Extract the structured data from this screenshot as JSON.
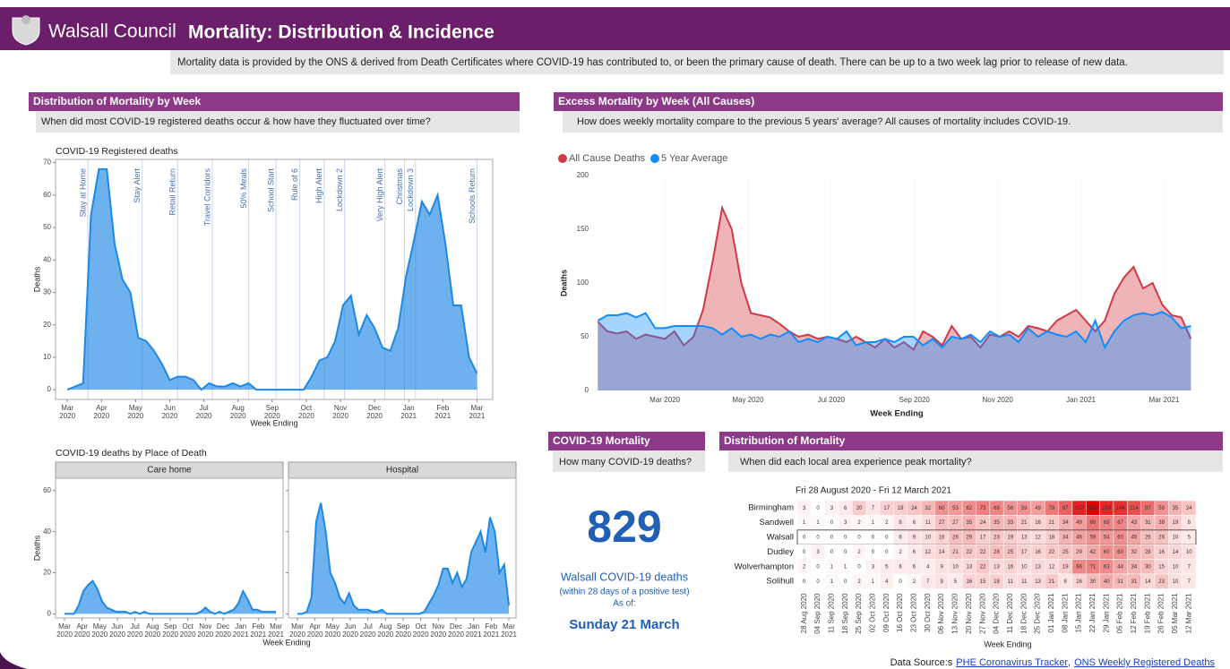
{
  "header": {
    "org": "Walsall Council",
    "title": "Mortality: Distribution & Incidence",
    "description": "Mortality data is provided by the ONS & derived from Death Certificates where COVID-19 has contributed to, or been the primary cause of death. There can be up to a two week lag prior to release of new data."
  },
  "panels": {
    "week": {
      "title": "Distribution of Mortality by Week",
      "question": "When did most COVID-19 registered deaths occur & how have they fluctuated over time?"
    },
    "excess": {
      "title": "Excess Mortality by Week (All Causes)",
      "question": "How does weekly mortality compare to the previous 5 years' average? All causes of mortality includes COVID-19."
    },
    "kpi": {
      "title": "COVID-19 Mortality",
      "question": "How many COVID-19 deaths?",
      "value": "829",
      "label": "Walsall COVID-19 deaths",
      "note": "(within 28 days of a positive test)",
      "asof_label": "As of:",
      "asof": "Sunday 21 March"
    },
    "distribution": {
      "title": "Distribution of Mortality",
      "question": "When did each local area experience peak mortality?"
    }
  },
  "place_of_death_title": "COVID-19 deaths by Place of Death",
  "footer": {
    "source_label": "Data Source:s",
    "separator": ",",
    "links": [
      "PHE Coronavirus Tracker",
      "ONS Weekly Registered Deaths"
    ]
  },
  "chart_data": [
    {
      "type": "area",
      "title": "COVID-19 Registered deaths",
      "y_label": "Deaths",
      "x_label": "Week Ending",
      "ylim": [
        -3,
        71
      ],
      "yticks": [
        0,
        10,
        20,
        30,
        40,
        50,
        60,
        70
      ],
      "xtick_labels": [
        [
          "Mar",
          "2020"
        ],
        [
          "Apr",
          "2020"
        ],
        [
          "May",
          "2020"
        ],
        [
          "Jun",
          "2020"
        ],
        [
          "Jul",
          "2020"
        ],
        [
          "Aug",
          "2020"
        ],
        [
          "Sep",
          "2020"
        ],
        [
          "Oct",
          "2020"
        ],
        [
          "Nov",
          "2020"
        ],
        [
          "Dec",
          "2020"
        ],
        [
          "Jan",
          "2021"
        ],
        [
          "Feb",
          "2021"
        ],
        [
          "Mar",
          "2021"
        ]
      ],
      "annotations": [
        "Stay at Home",
        "Stay Alert",
        "Retail Return",
        "Travel Corridors",
        "50% Meals",
        "School Start",
        "Rule of 6",
        "High Alert",
        "Lockdown 2",
        "Very High Alert",
        "Christmas",
        "Lockdown 3",
        "Schools Return"
      ],
      "series": [
        {
          "color": "#1e88e5",
          "values": [
            0,
            1,
            2,
            54,
            68,
            68,
            45,
            34,
            30,
            16,
            15,
            12,
            8,
            3,
            4,
            4,
            3,
            0,
            2,
            1,
            1,
            2,
            1,
            2,
            0,
            0,
            0,
            0,
            0,
            0,
            0,
            4,
            9,
            10,
            15,
            26,
            29,
            17,
            23,
            19,
            13,
            12,
            19,
            35,
            46,
            58,
            54,
            60,
            45,
            26,
            26,
            10,
            5
          ]
        }
      ]
    },
    {
      "type": "area",
      "title": "Care home",
      "y_label": "Deaths",
      "x_label": "Week Ending",
      "ylim": [
        -2,
        66
      ],
      "yticks": [
        0,
        20,
        40,
        60
      ],
      "xtick_labels": [
        [
          "Mar",
          "2020"
        ],
        [
          "Apr",
          "2020"
        ],
        [
          "May",
          "2020"
        ],
        [
          "Jun",
          "2020"
        ],
        [
          "Jul",
          "2020"
        ],
        [
          "Aug",
          "2020"
        ],
        [
          "Sep",
          "2020"
        ],
        [
          "Oct",
          "2020"
        ],
        [
          "Nov",
          "2020"
        ],
        [
          "Dec",
          "2020"
        ],
        [
          "Jan",
          "2021"
        ],
        [
          "Feb",
          "2021"
        ],
        [
          "Mar",
          "2021"
        ]
      ],
      "series": [
        {
          "color": "#1e88e5",
          "values": [
            0,
            0,
            0,
            4,
            11,
            14,
            16,
            12,
            6,
            3,
            2,
            1,
            1,
            1,
            0,
            1,
            0,
            1,
            0,
            0,
            0,
            0,
            0,
            0,
            0,
            0,
            0,
            0,
            0,
            1,
            3,
            1,
            0,
            1,
            0,
            1,
            2,
            5,
            11,
            7,
            2,
            2,
            1,
            1,
            1,
            1
          ]
        }
      ]
    },
    {
      "type": "area",
      "title": "Hospital",
      "ylim": [
        -2,
        66
      ],
      "yticks": [
        0,
        20,
        40,
        60
      ],
      "xtick_labels": [
        [
          "Mar",
          "2020"
        ],
        [
          "Apr",
          "2020"
        ],
        [
          "May",
          "2020"
        ],
        [
          "Jun",
          "2020"
        ],
        [
          "Jul",
          "2020"
        ],
        [
          "Aug",
          "2020"
        ],
        [
          "Sep",
          "2020"
        ],
        [
          "Oct",
          "2020"
        ],
        [
          "Nov",
          "2020"
        ],
        [
          "Dec",
          "2020"
        ],
        [
          "Jan",
          "2021"
        ],
        [
          "Feb",
          "2021"
        ],
        [
          "Mar",
          "2021"
        ]
      ],
      "series": [
        {
          "color": "#1e88e5",
          "values": [
            0,
            0,
            1,
            8,
            45,
            54,
            40,
            20,
            15,
            8,
            5,
            10,
            4,
            2,
            2,
            2,
            1,
            1,
            2,
            0,
            0,
            0,
            0,
            0,
            0,
            0,
            0,
            1,
            5,
            9,
            14,
            22,
            22,
            15,
            20,
            13,
            17,
            30,
            35,
            40,
            30,
            47,
            40,
            20,
            24,
            4
          ]
        }
      ]
    },
    {
      "type": "area",
      "y_label": "Deaths",
      "x_label": "Week Ending",
      "legend": "top-left",
      "ylim": [
        0,
        200
      ],
      "yticks": [
        0,
        50,
        100,
        150,
        200
      ],
      "xtick_labels": [
        "Mar 2020",
        "May 2020",
        "Jul 2020",
        "Sep 2020",
        "Nov 2020",
        "Jan 2021",
        "Mar 2021"
      ],
      "series": [
        {
          "name": "All Cause Deaths",
          "color": "#d13a45",
          "values": [
            64,
            55,
            53,
            55,
            48,
            52,
            50,
            48,
            55,
            42,
            50,
            75,
            120,
            170,
            150,
            100,
            72,
            70,
            68,
            62,
            55,
            50,
            52,
            48,
            50,
            48,
            45,
            50,
            45,
            40,
            48,
            40,
            45,
            38,
            55,
            50,
            42,
            60,
            48,
            50,
            40,
            52,
            50,
            55,
            50,
            60,
            58,
            55,
            65,
            70,
            75,
            65,
            55,
            65,
            90,
            105,
            115,
            95,
            100,
            80,
            70,
            68,
            48
          ]
        },
        {
          "name": "5 Year Average",
          "color": "#118dff",
          "values": [
            65,
            70,
            70,
            72,
            68,
            72,
            58,
            58,
            60,
            60,
            60,
            60,
            58,
            52,
            58,
            50,
            52,
            48,
            52,
            50,
            55,
            45,
            48,
            45,
            50,
            48,
            55,
            42,
            45,
            45,
            48,
            45,
            50,
            50,
            42,
            48,
            40,
            50,
            48,
            52,
            45,
            55,
            50,
            52,
            45,
            58,
            50,
            55,
            52,
            50,
            55,
            45,
            65,
            40,
            55,
            65,
            70,
            72,
            70,
            73,
            68,
            58,
            60
          ]
        }
      ]
    },
    {
      "type": "heatmap",
      "title": "Fri 28 August 2020 - Fri 12 March 2021",
      "x_label": "Week Ending",
      "color": "#e00000",
      "highlight": "Walsall",
      "categories": [
        "28 Aug 2020",
        "04 Sep 2020",
        "11 Sep 2020",
        "18 Sep 2020",
        "25 Sep 2020",
        "02 Oct 2020",
        "09 Oct 2020",
        "16 Oct 2020",
        "23 Oct 2020",
        "30 Oct 2020",
        "06 Nov 2020",
        "13 Nov 2020",
        "20 Nov 2020",
        "27 Nov 2020",
        "04 Dec 2020",
        "11 Dec 2020",
        "18 Dec 2020",
        "25 Dec 2020",
        "01 Jan 2021",
        "08 Jan 2021",
        "15 Jan 2021",
        "22 Jan 2021",
        "29 Jan 2021",
        "05 Feb 2021",
        "12 Feb 2021",
        "19 Feb 2021",
        "26 Feb 2021",
        "05 Mar 2021",
        "12 Mar 2021"
      ],
      "rows": [
        "Birmingham",
        "Sandwell",
        "Walsall",
        "Dudley",
        "Wolverhampton",
        "Solihull"
      ],
      "values": [
        [
          3,
          0,
          3,
          6,
          20,
          7,
          17,
          19,
          24,
          32,
          60,
          53,
          62,
          73,
          68,
          56,
          59,
          49,
          79,
          97,
          157,
          193,
          153,
          144,
          114,
          87,
          58,
          35,
          24
        ],
        [
          1,
          1,
          0,
          3,
          2,
          1,
          2,
          8,
          6,
          11,
          27,
          27,
          35,
          24,
          35,
          33,
          21,
          16,
          21,
          34,
          49,
          80,
          69,
          67,
          43,
          31,
          38,
          19,
          8
        ],
        [
          0,
          0,
          0,
          0,
          0,
          0,
          0,
          6,
          9,
          10,
          16,
          26,
          29,
          17,
          23,
          19,
          13,
          12,
          18,
          34,
          46,
          59,
          54,
          60,
          45,
          26,
          26,
          10,
          5
        ],
        [
          0,
          3,
          0,
          0,
          2,
          0,
          0,
          2,
          6,
          12,
          14,
          21,
          22,
          22,
          28,
          25,
          17,
          16,
          22,
          25,
          29,
          42,
          60,
          60,
          32,
          28,
          16,
          14,
          10
        ],
        [
          2,
          0,
          1,
          1,
          0,
          3,
          5,
          6,
          6,
          4,
          9,
          10,
          13,
          22,
          13,
          16,
          10,
          13,
          12,
          19,
          66,
          71,
          63,
          44,
          34,
          30,
          15,
          10,
          7
        ],
        [
          0,
          0,
          1,
          0,
          2,
          1,
          4,
          0,
          2,
          7,
          9,
          5,
          16,
          15,
          18,
          11,
          11,
          13,
          21,
          8,
          16,
          30,
          40,
          31,
          31,
          14,
          23,
          10,
          7
        ]
      ]
    }
  ]
}
